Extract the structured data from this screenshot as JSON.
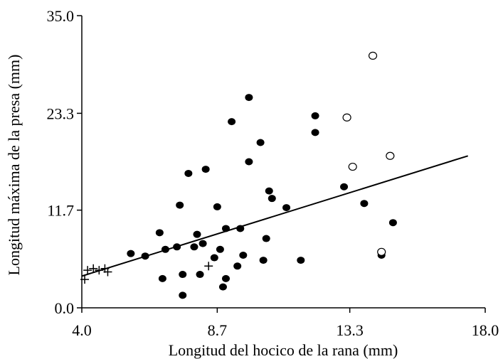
{
  "chart_data": {
    "type": "scatter",
    "title": "",
    "xlabel": "Longitud del hocico de la rana (mm)",
    "ylabel": "Longitud máxima de la presa (mm)",
    "xlim": [
      4.0,
      18.0
    ],
    "ylim": [
      0.0,
      35.0
    ],
    "xticks": [
      "4.0",
      "8.7",
      "13.3",
      "18.0"
    ],
    "yticks": [
      "0.0",
      "11.7",
      "23.3",
      "35.0"
    ],
    "grid": false,
    "legend": "none",
    "series": [
      {
        "marker": "filled-circle",
        "x": [
          5.7,
          6.2,
          6.7,
          6.8,
          6.9,
          7.3,
          7.4,
          7.5,
          7.5,
          7.7,
          7.9,
          8.0,
          8.1,
          8.2,
          8.3,
          8.6,
          8.7,
          8.8,
          8.9,
          9.0,
          9.0,
          9.2,
          9.4,
          9.5,
          9.6,
          9.8,
          9.8,
          10.2,
          10.3,
          10.4,
          10.5,
          10.6,
          11.1,
          11.6,
          12.1,
          12.1,
          13.1,
          13.8,
          14.4,
          14.8
        ],
        "y": [
          6.5,
          6.2,
          9.0,
          3.5,
          7.0,
          7.3,
          12.3,
          4.0,
          1.5,
          16.1,
          7.3,
          8.8,
          4.0,
          7.7,
          16.6,
          6.0,
          12.1,
          7.0,
          2.5,
          3.5,
          9.5,
          22.3,
          5.0,
          9.5,
          6.3,
          17.5,
          25.2,
          19.8,
          5.7,
          8.3,
          14.0,
          13.1,
          12.0,
          5.7,
          21.0,
          23.0,
          14.5,
          12.5,
          6.3,
          10.2
        ]
      },
      {
        "marker": "open-circle",
        "x": [
          13.2,
          13.4,
          14.1,
          14.4,
          14.7
        ],
        "y": [
          22.8,
          16.9,
          30.2,
          6.7,
          18.2
        ]
      },
      {
        "marker": "plus",
        "x": [
          4.1,
          4.2,
          4.4,
          4.6,
          4.8,
          4.9,
          8.4
        ],
        "y": [
          3.4,
          4.5,
          4.7,
          4.5,
          4.7,
          4.3,
          5.0
        ]
      }
    ],
    "trendline": {
      "x": [
        4.0,
        17.4
      ],
      "y": [
        3.8,
        18.2
      ]
    }
  }
}
